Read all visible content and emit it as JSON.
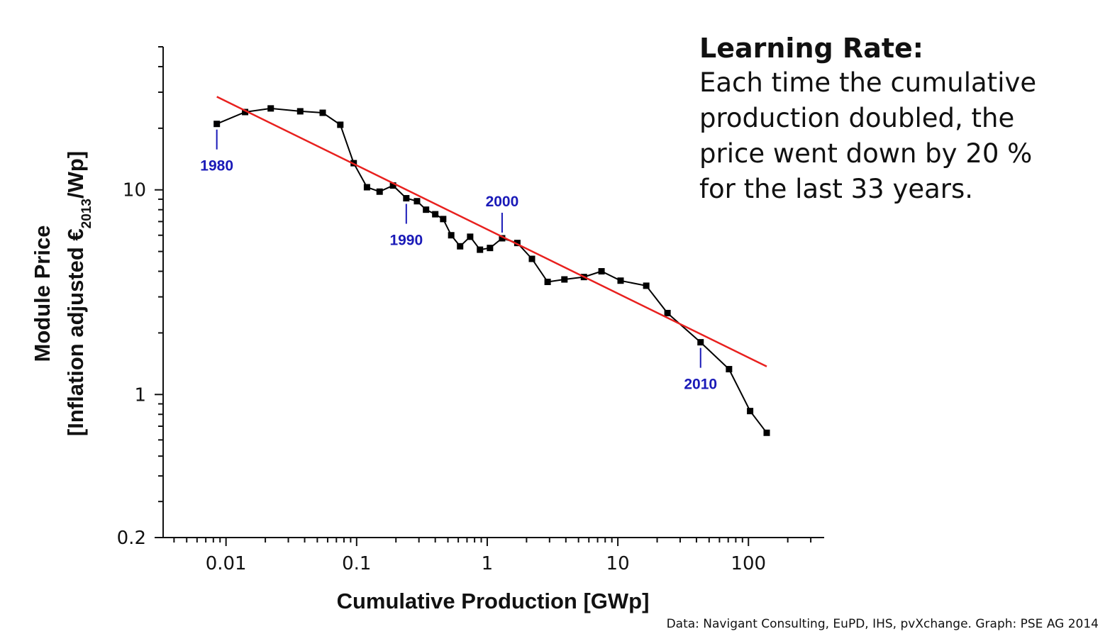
{
  "chart_data": {
    "type": "line",
    "xlabel": "Cumulative Production [GWp]",
    "ylabel_line1": "Module Price",
    "ylabel_line2_prefix": "[Inflation adjusted €",
    "ylabel_subscript": "2013",
    "ylabel_line2_suffix": "/Wp]",
    "x_scale": "log",
    "y_scale": "log",
    "xlim": [
      0.0033,
      380
    ],
    "ylim": [
      0.2,
      50
    ],
    "x_ticks": [
      {
        "value": 0.01,
        "label": "0.01"
      },
      {
        "value": 0.1,
        "label": "0.1"
      },
      {
        "value": 1,
        "label": "1"
      },
      {
        "value": 10,
        "label": "10"
      },
      {
        "value": 100,
        "label": "100"
      }
    ],
    "y_ticks": [
      {
        "value": 0.2,
        "label": "0.2"
      },
      {
        "value": 1,
        "label": "1"
      },
      {
        "value": 10,
        "label": "10"
      }
    ],
    "series": [
      {
        "color": "#000000",
        "marker": "square",
        "points": [
          [
            0.0085,
            21.0
          ],
          [
            0.014,
            24.0
          ],
          [
            0.022,
            25.0
          ],
          [
            0.037,
            24.2
          ],
          [
            0.055,
            23.8
          ],
          [
            0.075,
            20.8
          ],
          [
            0.095,
            13.5
          ],
          [
            0.12,
            10.3
          ],
          [
            0.15,
            9.8
          ],
          [
            0.19,
            10.5
          ],
          [
            0.24,
            9.1
          ],
          [
            0.29,
            8.8
          ],
          [
            0.34,
            8.0
          ],
          [
            0.4,
            7.6
          ],
          [
            0.46,
            7.2
          ],
          [
            0.53,
            6.0
          ],
          [
            0.62,
            5.3
          ],
          [
            0.74,
            5.9
          ],
          [
            0.88,
            5.1
          ],
          [
            1.05,
            5.2
          ],
          [
            1.3,
            5.8
          ],
          [
            1.7,
            5.5
          ],
          [
            2.2,
            4.6
          ],
          [
            2.9,
            3.55
          ],
          [
            3.9,
            3.65
          ],
          [
            5.5,
            3.75
          ],
          [
            7.5,
            4.0
          ],
          [
            10.5,
            3.6
          ],
          [
            16.5,
            3.4
          ],
          [
            24.0,
            2.5
          ],
          [
            43.0,
            1.8
          ],
          [
            71.0,
            1.33
          ],
          [
            103.0,
            0.83
          ],
          [
            138.0,
            0.65
          ]
        ]
      },
      {
        "color": "#e8201e",
        "marker": "none",
        "points": [
          [
            0.0085,
            28.5
          ],
          [
            138.0,
            1.37
          ]
        ]
      }
    ],
    "annotations": [
      {
        "label": "1980",
        "x": 0.0085,
        "y": 21.0
      },
      {
        "label": "1990",
        "x": 0.24,
        "y": 9.1
      },
      {
        "label": "2000",
        "x": 1.3,
        "y": 5.8
      },
      {
        "label": "2010",
        "x": 43.0,
        "y": 1.8
      }
    ],
    "annotation_color": "#1a1ab8",
    "grid": false,
    "legend": "none"
  },
  "info_box": {
    "title": "Learning Rate:",
    "lines": [
      "Each time the cumulative",
      "production doubled, the",
      "price went down by 20 %",
      "for the last 33 years."
    ]
  },
  "source_note": "Data: Navigant Consulting, EuPD, IHS, pvXchange. Graph: PSE AG 2014"
}
